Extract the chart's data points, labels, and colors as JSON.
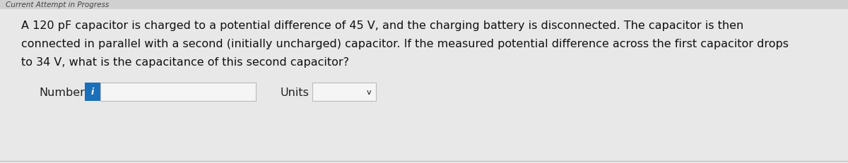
{
  "background_color": "#e8e8e8",
  "body_background": "#e8e8e8",
  "problem_text_line1": "A 120 pF capacitor is charged to a potential difference of 45 V, and the charging battery is disconnected. The capacitor is then",
  "problem_text_line2": "connected in parallel with a second (initially uncharged) capacitor. If the measured potential difference across the first capacitor drops",
  "problem_text_line3": "to 34 V, what is the capacitance of this second capacitor?",
  "number_label": "Number",
  "units_label": "Units",
  "info_button_color": "#1a6fba",
  "info_button_text": "i",
  "info_button_text_color": "#ffffff",
  "input_box_color": "#f5f5f5",
  "input_box_border": "#bbbbbb",
  "units_box_color": "#f5f5f5",
  "units_box_border": "#bbbbbb",
  "text_color": "#111111",
  "label_color": "#222222",
  "font_size_body": 11.5,
  "font_size_label": 11.5,
  "top_text": "Current Attempt in Progress",
  "top_text_color": "#444444",
  "bottom_line_color": "#bbbbbb"
}
